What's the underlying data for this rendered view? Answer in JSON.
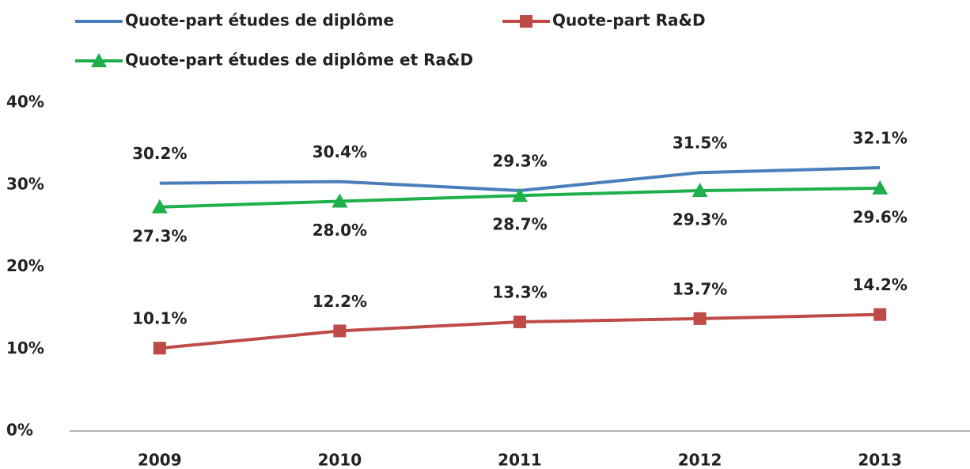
{
  "chart_data": {
    "type": "line",
    "categories": [
      "2009",
      "2010",
      "2011",
      "2012",
      "2013"
    ],
    "series": [
      {
        "name": "Quote-part études de diplôme",
        "color": "#4a7ebb",
        "label_position": "above",
        "values": [
          30.2,
          30.4,
          29.3,
          31.5,
          32.1
        ],
        "value_labels": [
          "30.2%",
          "30.4%",
          "29.3%",
          "31.5%",
          "32.1%"
        ]
      },
      {
        "name": "Quote-part Ra&D",
        "color": "#be4b48",
        "marker": "square",
        "label_position": "above",
        "values": [
          10.1,
          12.2,
          13.3,
          13.7,
          14.2
        ],
        "value_labels": [
          "10.1%",
          "12.2%",
          "13.3%",
          "13.7%",
          "14.2%"
        ]
      },
      {
        "name": "Quote-part études de diplôme et Ra&D",
        "color": "#1fb04b",
        "marker": "triangle",
        "label_position": "below",
        "values": [
          27.3,
          28.0,
          28.7,
          29.3,
          29.6
        ],
        "value_labels": [
          "27.3%",
          "28.0%",
          "28.7%",
          "29.3%",
          "29.6%"
        ]
      }
    ],
    "ylim": [
      0,
      40
    ],
    "yticks": [
      {
        "value": 0,
        "label": "0%"
      },
      {
        "value": 10,
        "label": "10%"
      },
      {
        "value": 20,
        "label": "20%"
      },
      {
        "value": 30,
        "label": "30%"
      },
      {
        "value": 40,
        "label": "40%"
      }
    ],
    "grid": false
  }
}
